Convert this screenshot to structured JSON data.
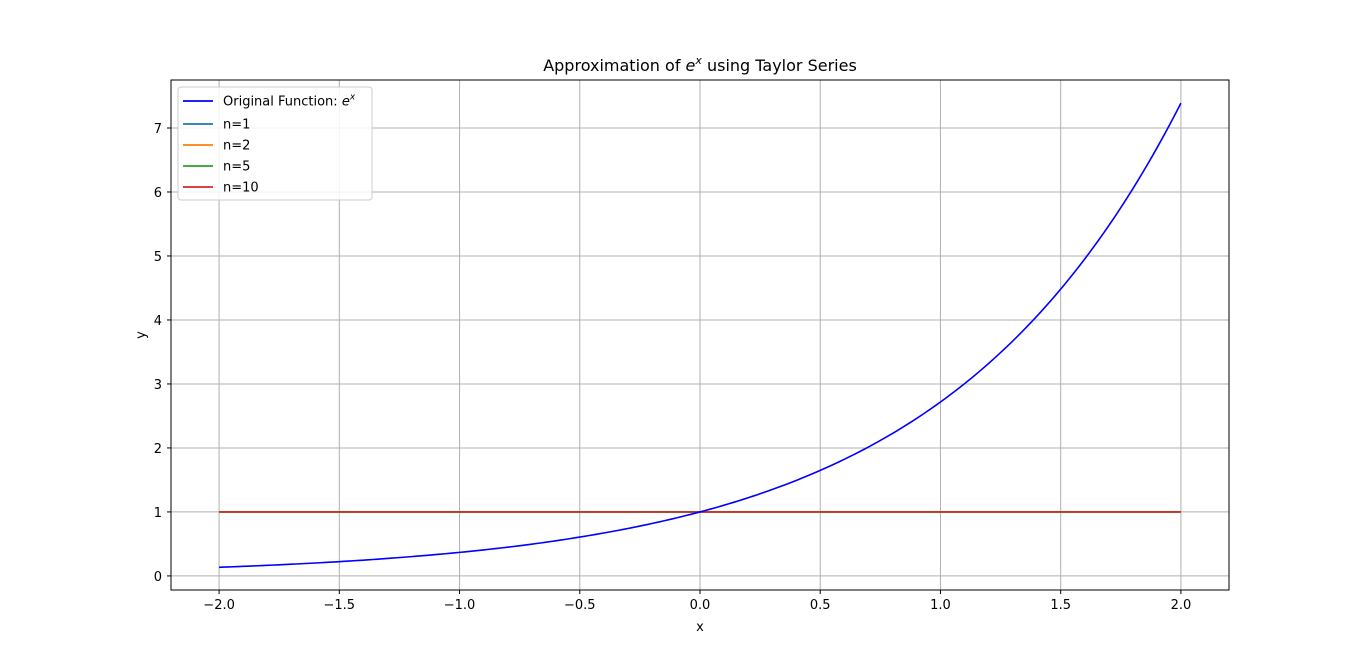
{
  "chart_data": {
    "type": "line",
    "title": "Approximation of e^x using Taylor Series",
    "xlabel": "x",
    "ylabel": "y",
    "xlim": [
      -2.2,
      2.2
    ],
    "ylim": [
      -0.22,
      7.75
    ],
    "x_ticks": [
      -2.0,
      -1.5,
      -1.0,
      -0.5,
      0.0,
      0.5,
      1.0,
      1.5,
      2.0
    ],
    "x_tick_labels": [
      "−2.0",
      "−1.5",
      "−1.0",
      "−0.5",
      "0.0",
      "0.5",
      "1.0",
      "1.5",
      "2.0"
    ],
    "y_ticks": [
      0,
      1,
      2,
      3,
      4,
      5,
      6,
      7
    ],
    "y_tick_labels": [
      "0",
      "1",
      "2",
      "3",
      "4",
      "5",
      "6",
      "7"
    ],
    "grid": true,
    "legend_position": "top-left",
    "x": [
      -2.0,
      -1.75,
      -1.5,
      -1.25,
      -1.0,
      -0.75,
      -0.5,
      -0.25,
      0.0,
      0.25,
      0.5,
      0.75,
      1.0,
      1.25,
      1.5,
      1.75,
      2.0
    ],
    "series": [
      {
        "name": "Original Function: e^x",
        "name_base": "Original Function: ",
        "name_math_base": "e",
        "name_math_sup": "x",
        "color": "#0000ff",
        "values": [
          0.135,
          0.174,
          0.223,
          0.287,
          0.368,
          0.472,
          0.607,
          0.779,
          1.0,
          1.284,
          1.649,
          2.117,
          2.718,
          3.49,
          4.482,
          5.755,
          7.389
        ]
      },
      {
        "name": "n=1",
        "color": "#1f77b4",
        "values": [
          1,
          1,
          1,
          1,
          1,
          1,
          1,
          1,
          1,
          1,
          1,
          1,
          1,
          1,
          1,
          1,
          1
        ]
      },
      {
        "name": "n=2",
        "color": "#ff7f0e",
        "values": [
          1,
          1,
          1,
          1,
          1,
          1,
          1,
          1,
          1,
          1,
          1,
          1,
          1,
          1,
          1,
          1,
          1
        ]
      },
      {
        "name": "n=5",
        "color": "#2ca02c",
        "values": [
          1,
          1,
          1,
          1,
          1,
          1,
          1,
          1,
          1,
          1,
          1,
          1,
          1,
          1,
          1,
          1,
          1
        ]
      },
      {
        "name": "n=10",
        "color": "#d62728",
        "values": [
          1,
          1,
          1,
          1,
          1,
          1,
          1,
          1,
          1,
          1,
          1,
          1,
          1,
          1,
          1,
          1,
          1
        ]
      }
    ]
  }
}
